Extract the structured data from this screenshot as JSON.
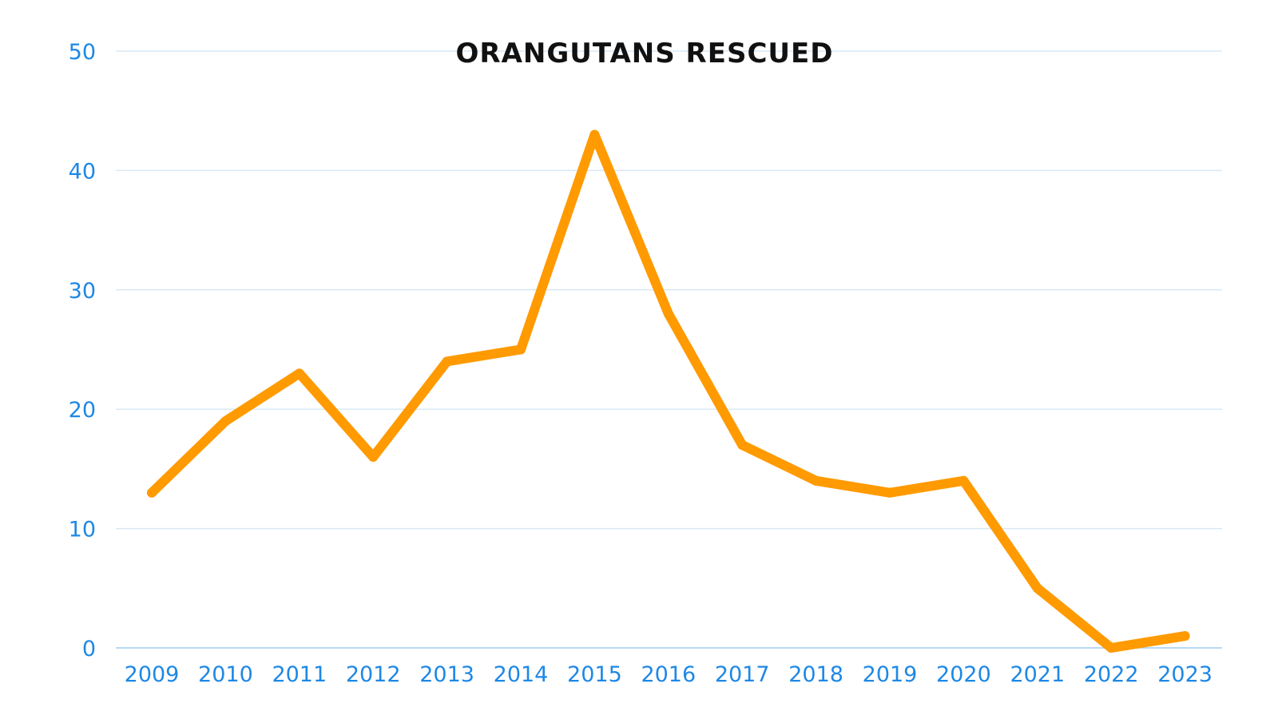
{
  "chart_data": {
    "type": "line",
    "title": "ORANGUTANS RESCUED",
    "xlabel": "",
    "ylabel": "",
    "categories": [
      "2009",
      "2010",
      "2011",
      "2012",
      "2013",
      "2014",
      "2015",
      "2016",
      "2017",
      "2018",
      "2019",
      "2020",
      "2021",
      "2022",
      "2023"
    ],
    "series": [
      {
        "values": [
          13,
          19,
          23,
          16,
          24,
          25,
          43,
          28,
          17,
          14,
          13,
          14,
          5,
          0,
          1
        ]
      }
    ],
    "ylim": [
      0,
      50
    ],
    "yticks": [
      0,
      10,
      20,
      30,
      40,
      50
    ],
    "ytick_labels": [
      "0",
      "10",
      "20",
      "30",
      "40",
      "50"
    ],
    "grid": true,
    "legend": "none",
    "colors": {
      "line": "#ff9a00",
      "tick_text": "#1e88e5",
      "grid": "#d9e9f6",
      "title": "#111111"
    }
  }
}
